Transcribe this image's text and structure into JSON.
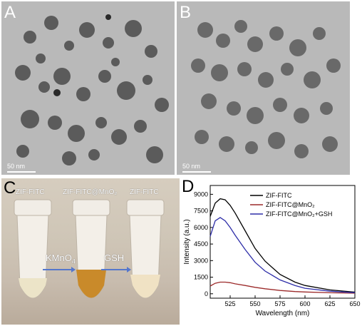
{
  "panels": {
    "a": {
      "letter": "A",
      "scale": "50 nm"
    },
    "b": {
      "letter": "B",
      "scale": "50 nm"
    },
    "c": {
      "letter": "C",
      "tubes": [
        "ZIF-FITC",
        "ZIF-FITC@MnO₂",
        "ZIF-FITC"
      ],
      "reagents": {
        "first": "KMnO",
        "first_sub": "4",
        "second": "GSH"
      }
    },
    "d": {
      "letter": "D"
    }
  },
  "colors": {
    "black": "#000000",
    "red": "#9c2a2a",
    "blue": "#2e2ea8"
  },
  "chart_data": {
    "type": "line",
    "xlabel": "Wavelength (nm)",
    "ylabel": "Intensity (a.u.)",
    "xlim": [
      505,
      650
    ],
    "ylim": [
      -400,
      9800
    ],
    "xticks": [
      525,
      550,
      575,
      600,
      625,
      650
    ],
    "yticks": [
      0,
      1500,
      3000,
      4500,
      6000,
      7500,
      9000
    ],
    "legend_position": "top-right",
    "series": [
      {
        "name": "ZIF-FITC",
        "color": "#000000",
        "x": [
          505,
          510,
          515,
          520,
          525,
          530,
          540,
          550,
          560,
          575,
          590,
          600,
          625,
          650
        ],
        "y": [
          7000,
          8200,
          8600,
          8500,
          8000,
          7300,
          5700,
          4100,
          2950,
          1750,
          1050,
          750,
          350,
          150
        ]
      },
      {
        "name": "ZIF-FITC@MnO₂",
        "color": "#9c2a2a",
        "x": [
          505,
          510,
          515,
          520,
          525,
          530,
          540,
          550,
          560,
          575,
          590,
          600,
          625,
          650
        ],
        "y": [
          700,
          950,
          1050,
          1050,
          1000,
          900,
          750,
          580,
          450,
          300,
          200,
          160,
          90,
          50
        ]
      },
      {
        "name": "ZIF-FITC@MnO₂+GSH",
        "color": "#2e2ea8",
        "x": [
          505,
          510,
          515,
          520,
          525,
          530,
          540,
          550,
          560,
          575,
          590,
          600,
          625,
          650
        ],
        "y": [
          5200,
          6600,
          6900,
          6600,
          6000,
          5300,
          4000,
          2850,
          2050,
          1250,
          750,
          500,
          230,
          100
        ]
      }
    ]
  }
}
